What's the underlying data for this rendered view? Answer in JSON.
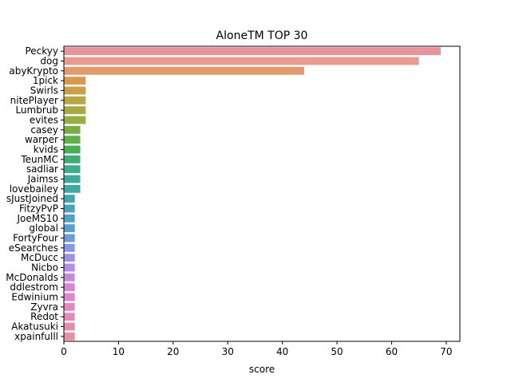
{
  "chart_data": {
    "type": "bar",
    "orientation": "horizontal",
    "title": "AloneTM TOP 30",
    "xlabel": "score",
    "ylabel": "",
    "xlim": [
      0,
      72.5
    ],
    "xticks": [
      0,
      10,
      20,
      30,
      40,
      50,
      60,
      70
    ],
    "grid": false,
    "categories": [
      "Peckyy",
      "dog",
      "abyKrypto",
      "1pick",
      "Swirls",
      "nitePlayer",
      "Lumbrub",
      "evites",
      "casey",
      "warper",
      "kvids",
      "TeunMC",
      "sadliar",
      "Jaimss",
      "lovebailey",
      "sJustJoined",
      "FitzyPvP",
      "JoeMS10",
      "global",
      "FortyFour",
      "eSearches",
      "McDucc",
      "Nicbo",
      "McDonalds",
      "ddlestrom",
      "Edwinium",
      "Zyvra",
      "Redot",
      "Akatusuki",
      "xpainfulll"
    ],
    "values": [
      69,
      65,
      44,
      4,
      4,
      4,
      4,
      4,
      3,
      3,
      3,
      3,
      3,
      3,
      3,
      2,
      2,
      2,
      2,
      2,
      2,
      2,
      2,
      2,
      2,
      2,
      2,
      2,
      2,
      2
    ],
    "colors": [
      "#e8949a",
      "#e89b8e",
      "#e39a6c",
      "#d99a4e",
      "#c9a04a",
      "#b9a546",
      "#a8a942",
      "#98ae40",
      "#7aae43",
      "#5cb149",
      "#44b150",
      "#3eaf72",
      "#3ead8a",
      "#3eab9a",
      "#3ea9a5",
      "#40a7b0",
      "#44a6ba",
      "#4aa3c8",
      "#56a0d6",
      "#6e9ce0",
      "#8699e6",
      "#9e95e8",
      "#b48fe8",
      "#c68ae3",
      "#d786dc",
      "#e185d2",
      "#e587c4",
      "#e68ab8",
      "#e78dac",
      "#e890a2"
    ]
  }
}
